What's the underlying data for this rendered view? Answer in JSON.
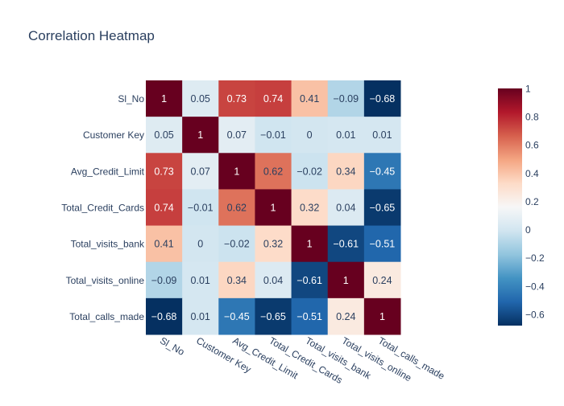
{
  "chart_data": {
    "type": "heatmap",
    "title": "Correlation Heatmap",
    "x_categories": [
      "Sl_No",
      "Customer Key",
      "Avg_Credit_Limit",
      "Total_Credit_Cards",
      "Total_visits_bank",
      "Total_visits_online",
      "Total_calls_made"
    ],
    "y_categories": [
      "Sl_No",
      "Customer Key",
      "Avg_Credit_Limit",
      "Total_Credit_Cards",
      "Total_visits_bank",
      "Total_visits_online",
      "Total_calls_made"
    ],
    "values": [
      [
        1,
        0.05,
        0.73,
        0.74,
        0.41,
        -0.09,
        -0.68
      ],
      [
        0.05,
        1,
        0.07,
        -0.01,
        0,
        0.01,
        0.01
      ],
      [
        0.73,
        0.07,
        1,
        0.62,
        -0.02,
        0.34,
        -0.45
      ],
      [
        0.74,
        -0.01,
        0.62,
        1,
        0.32,
        0.04,
        -0.65
      ],
      [
        0.41,
        0,
        -0.02,
        0.32,
        1,
        -0.61,
        -0.51
      ],
      [
        -0.09,
        0.01,
        0.34,
        0.04,
        -0.61,
        1,
        0.24
      ],
      [
        -0.68,
        0.01,
        -0.45,
        -0.65,
        -0.51,
        0.24,
        1
      ]
    ],
    "colorscale": "RdBu reversed",
    "zmin": -0.68,
    "zmax": 1,
    "colorbar_ticks": [
      1,
      0.8,
      0.6,
      0.4,
      0.2,
      0,
      -0.2,
      -0.4,
      -0.6
    ],
    "colorbar_placement": "right"
  }
}
